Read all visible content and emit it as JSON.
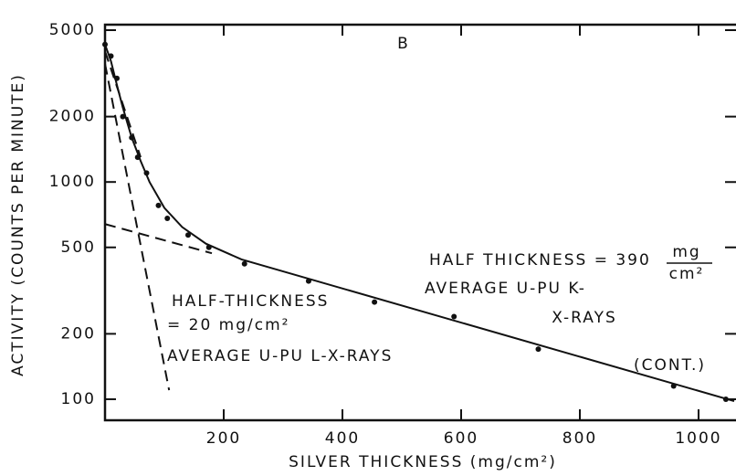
{
  "chart_data": {
    "type": "line",
    "xlabel": "SILVER THICKNESS (mg/cm²)",
    "ylabel": "ACTIVITY (COUNTS PER MINUTE)",
    "xlim": [
      0,
      1060
    ],
    "ylim": [
      80,
      5000
    ],
    "log_y": true,
    "xticks": [
      200,
      400,
      600,
      800,
      1000
    ],
    "yticks": [
      100,
      200,
      500,
      1000,
      2000,
      5000
    ],
    "annotations": [
      "B",
      "HALF THICKNESS = 390",
      "mg",
      "cm²",
      "AVERAGE U-PU K-",
      "X-RAYS",
      "HALF-THICKNESS",
      "= 20 mg/cm²",
      "AVERAGE U-PU L-X-RAYS",
      "(CONT.)"
    ],
    "series": [
      {
        "mode": "points",
        "color": "#111",
        "x": [
          0,
          10,
          20,
          30,
          45,
          55,
          70,
          90,
          105,
          140,
          175,
          235,
          343,
          454,
          588,
          730,
          958,
          1046
        ],
        "values": [
          4300,
          3800,
          3000,
          2000,
          1600,
          1300,
          1100,
          780,
          680,
          570,
          500,
          420,
          350,
          280,
          240,
          170,
          115,
          100
        ]
      },
      {
        "mode": "solid",
        "color": "#111",
        "x": [
          0,
          10,
          20,
          30,
          45,
          60,
          75,
          100,
          130,
          170,
          230,
          1060
        ],
        "values": [
          4300,
          3600,
          2800,
          2200,
          1600,
          1250,
          1000,
          760,
          620,
          520,
          440,
          98
        ]
      },
      {
        "mode": "dashed",
        "color": "#111",
        "x": [
          0,
          108
        ],
        "values": [
          3500,
          110
        ]
      },
      {
        "mode": "dashed",
        "color": "#111",
        "x": [
          0,
          60
        ],
        "values": [
          4000,
          1300
        ]
      },
      {
        "mode": "dashed",
        "color": "#111",
        "x": [
          0,
          180
        ],
        "values": [
          640,
          470
        ]
      }
    ]
  }
}
